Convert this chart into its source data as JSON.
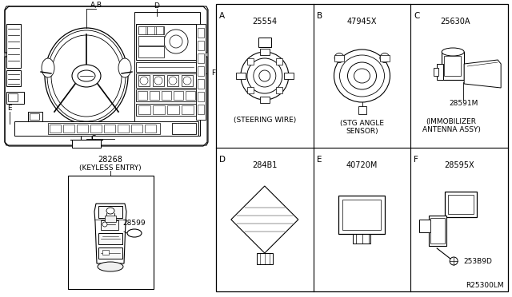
{
  "bg_color": "#ffffff",
  "line_color": "#000000",
  "text_color": "#000000",
  "ref_number": "R25300LM",
  "parts": {
    "A": {
      "label": "A",
      "part_num": "25554",
      "desc": "(STEERING WIRE)"
    },
    "B": {
      "label": "B",
      "part_num": "47945X",
      "desc1": "(STG ANGLE",
      "desc2": "SENSOR)"
    },
    "C": {
      "label": "C",
      "part_num": "25630A",
      "desc1": "(IMMOBILIZER",
      "desc2": "ANTENNA ASSY)",
      "sub_num": "28591M"
    },
    "D": {
      "label": "D",
      "part_num": "284B1"
    },
    "E": {
      "label": "E",
      "part_num": "40720M"
    },
    "F": {
      "label": "F",
      "part_num": "28595X",
      "sub_num": "253B9D"
    }
  },
  "keyless": {
    "part_num": "28268",
    "desc": "(KEYLESS ENTRY)",
    "sub_num": "28599"
  },
  "fs": 6.5,
  "fs_label": 7.5,
  "fs_pn": 7.0
}
